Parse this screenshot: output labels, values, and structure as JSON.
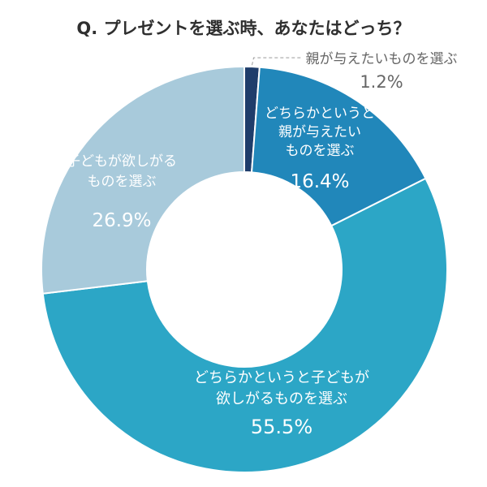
{
  "chart_data": {
    "type": "pie",
    "title": "Q. プレゼントを選ぶ時、あなたはどっち？",
    "slices": [
      {
        "label_lines": [
          "親が与えたいものを選ぶ"
        ],
        "value": 1.2,
        "value_label": "1.2%",
        "color": "#1f3d6b"
      },
      {
        "label_lines": [
          "どちらかというと",
          "親が与えたい",
          "ものを選ぶ"
        ],
        "value": 16.4,
        "value_label": "16.4%",
        "color": "#2187ba"
      },
      {
        "label_lines": [
          "どちらかというと子どもが",
          "欲しがるものを選ぶ"
        ],
        "value": 55.5,
        "value_label": "55.5%",
        "color": "#2ca6c6"
      },
      {
        "label_lines": [
          "子どもが欲しがる",
          "ものを選ぶ"
        ],
        "value": 26.9,
        "value_label": "26.9%",
        "color": "#a8cadb"
      }
    ]
  }
}
